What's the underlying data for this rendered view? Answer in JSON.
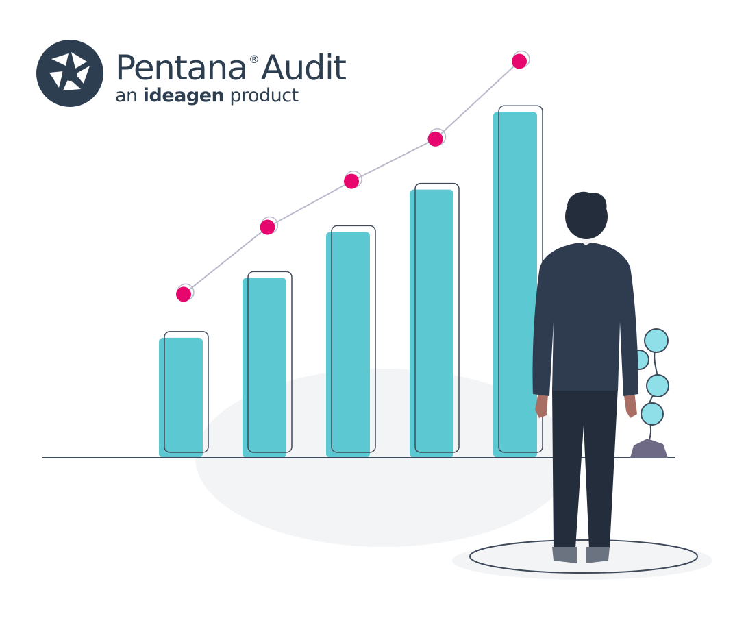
{
  "logo": {
    "name": "Pentana",
    "registered": "®",
    "product": "Audit",
    "tagline_pre": "an",
    "tagline_brand": "ideagen",
    "tagline_post": "product",
    "icon": "aperture-icon",
    "color": "#2c3e50"
  },
  "colors": {
    "bar_fill": "#5cc8d2",
    "bar_outline": "#3f4a5a",
    "trend_line": "#b9b9cc",
    "point_fill": "#e6066e",
    "ground": "#3f4a5a",
    "suit": "#2f3b4e",
    "pants": "#232d3b",
    "skin": "#a86d63",
    "hair": "#232d3b",
    "plant_leaf": "#8fdfe8",
    "plant_stem": "#3f4a5a",
    "rock": "#6e6a85",
    "shadow": "#f3f4f6"
  },
  "chart_data": {
    "type": "bar",
    "categories": [
      "",
      "",
      "",
      "",
      ""
    ],
    "series": [
      {
        "values": [
          34,
          51,
          64,
          76,
          98
        ]
      },
      {
        "values": [
          44,
          63,
          76,
          88,
          110
        ]
      }
    ],
    "title": "",
    "xlabel": "",
    "ylabel": "",
    "ylim": [
      0,
      120
    ],
    "grid": false,
    "axis_labels_shown": false
  }
}
